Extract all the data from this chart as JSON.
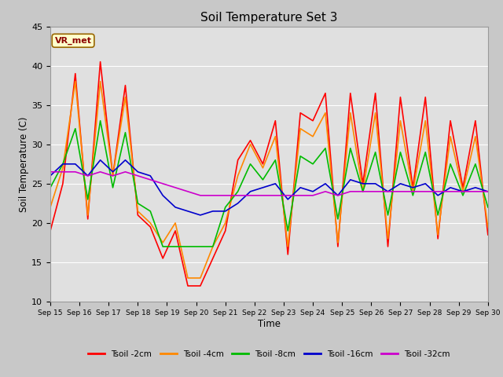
{
  "title": "Soil Temperature Set 3",
  "xlabel": "Time",
  "ylabel": "Soil Temperature (C)",
  "ylim": [
    10,
    45
  ],
  "yticks": [
    10,
    15,
    20,
    25,
    30,
    35,
    40,
    45
  ],
  "fig_bg_color": "#c8c8c8",
  "plot_bg_color": "#e0e0e0",
  "vr_met_label": "VR_met",
  "legend_entries": [
    "Tsoil -2cm",
    "Tsoil -4cm",
    "Tsoil -8cm",
    "Tsoil -16cm",
    "Tsoil -32cm"
  ],
  "line_colors": [
    "#ff0000",
    "#ff8800",
    "#00bb00",
    "#0000cc",
    "#cc00cc"
  ],
  "xtick_labels": [
    "Sep 15",
    "Sep 16",
    "Sep 17",
    "Sep 18",
    "Sep 19",
    "Sep 20",
    "Sep 21",
    "Sep 22",
    "Sep 23",
    "Sep 24",
    "Sep 25",
    "Sep 26",
    "Sep 27",
    "Sep 28",
    "Sep 29",
    "Sep 30"
  ],
  "t2cm": [
    19.0,
    25.0,
    39.0,
    20.5,
    40.5,
    26.0,
    37.5,
    21.0,
    19.5,
    15.5,
    19.0,
    12.0,
    12.0,
    15.5,
    19.0,
    28.0,
    30.5,
    27.5,
    33.0,
    16.0,
    34.0,
    33.0,
    36.5,
    17.0,
    36.5,
    25.0,
    36.5,
    17.0,
    36.0,
    24.5,
    36.0,
    18.0,
    33.0,
    24.5,
    33.0,
    18.5
  ],
  "t4cm": [
    22.0,
    27.0,
    38.0,
    21.0,
    38.0,
    26.0,
    36.0,
    21.5,
    20.0,
    17.5,
    20.0,
    13.0,
    13.0,
    17.0,
    20.0,
    26.0,
    30.0,
    27.0,
    31.0,
    17.0,
    32.0,
    31.0,
    34.0,
    17.5,
    34.0,
    24.0,
    34.0,
    18.0,
    33.0,
    24.0,
    33.0,
    18.5,
    31.0,
    24.0,
    31.0,
    19.5
  ],
  "t8cm": [
    24.5,
    27.5,
    32.0,
    23.0,
    33.0,
    24.5,
    31.5,
    22.5,
    21.5,
    17.0,
    17.0,
    17.0,
    17.0,
    17.0,
    22.0,
    24.0,
    27.5,
    25.5,
    28.0,
    19.0,
    28.5,
    27.5,
    29.5,
    20.5,
    29.5,
    24.0,
    29.0,
    21.0,
    29.0,
    23.5,
    29.0,
    21.0,
    27.5,
    23.5,
    27.5,
    22.0
  ],
  "t16cm": [
    26.0,
    27.5,
    27.5,
    26.0,
    28.0,
    26.5,
    28.0,
    26.5,
    26.0,
    23.5,
    22.0,
    21.5,
    21.0,
    21.5,
    21.5,
    22.5,
    24.0,
    24.5,
    25.0,
    23.0,
    24.5,
    24.0,
    25.0,
    23.5,
    25.5,
    25.0,
    25.0,
    24.0,
    25.0,
    24.5,
    25.0,
    23.5,
    24.5,
    24.0,
    24.5,
    24.0
  ],
  "t32cm": [
    26.5,
    26.5,
    26.5,
    26.0,
    26.5,
    26.0,
    26.5,
    26.0,
    25.5,
    25.0,
    24.5,
    24.0,
    23.5,
    23.5,
    23.5,
    23.5,
    23.5,
    23.5,
    23.5,
    23.5,
    23.5,
    23.5,
    24.0,
    23.5,
    24.0,
    24.0,
    24.0,
    24.0,
    24.0,
    24.0,
    24.0,
    24.0,
    24.0,
    24.0,
    24.0,
    24.0
  ]
}
